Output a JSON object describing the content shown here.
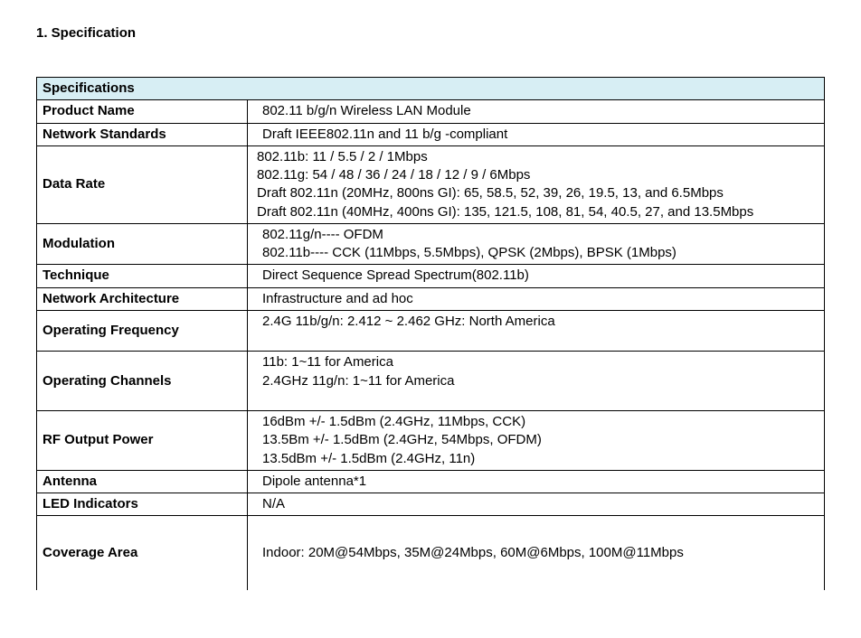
{
  "heading": "1.    Specification",
  "table": {
    "header": "Specifications",
    "labelColWidth": 220,
    "headerBg": "#d7eef4",
    "borderColor": "#000000",
    "rows": [
      {
        "label": "Product Name",
        "lines": [
          "802.11 b/g/n Wireless LAN Module"
        ],
        "indent": true
      },
      {
        "label": "Network Standards",
        "lines": [
          "Draft IEEE802.11n and 11 b/g -compliant"
        ],
        "indent": true
      },
      {
        "label": "Data Rate",
        "lines": [
          "802.11b: 11 / 5.5 / 2 / 1Mbps",
          "802.11g: 54 / 48 / 36 / 24 / 18 / 12 / 9 / 6Mbps",
          "Draft 802.11n (20MHz, 800ns GI): 65, 58.5, 52, 39, 26, 19.5, 13, and 6.5Mbps",
          "Draft 802.11n (40MHz, 400ns GI): 135, 121.5, 108, 81, 54, 40.5, 27, and 13.5Mbps"
        ],
        "indent": false
      },
      {
        "label": "Modulation",
        "lines": [
          "802.11g/n---- OFDM",
          "802.11b---- CCK (11Mbps, 5.5Mbps), QPSK (2Mbps), BPSK (1Mbps)"
        ],
        "indent": true
      },
      {
        "label": "Technique",
        "lines": [
          "Direct Sequence Spread Spectrum(802.11b)"
        ],
        "indent": true
      },
      {
        "label": "Network Architecture",
        "lines": [
          "Infrastructure and ad hoc"
        ],
        "indent": true
      },
      {
        "label": "Operating Frequency",
        "lines": [
          "2.4G 11b/g/n: 2.412 ~ 2.462 GHz: North America",
          ""
        ],
        "indent": true
      },
      {
        "label": "Operating Channels",
        "lines": [
          "11b: 1~11 for America",
          "2.4GHz 11g/n: 1~11 for America",
          ""
        ],
        "indent": true
      },
      {
        "label": "RF Output Power",
        "lines": [
          "16dBm +/- 1.5dBm (2.4GHz, 11Mbps, CCK)",
          "13.5Bm +/- 1.5dBm (2.4GHz, 54Mbps, OFDM)",
          "13.5dBm +/- 1.5dBm (2.4GHz, 11n)"
        ],
        "indent": true
      },
      {
        "label": "Antenna",
        "lines": [
          "Dipole antenna*1"
        ],
        "indent": true
      },
      {
        "label": "LED Indicators",
        "lines": [
          "N/A"
        ],
        "indent": true
      },
      {
        "label": "Coverage Area",
        "lines": [
          "Indoor: 20M@54Mbps, 35M@24Mbps, 60M@6Mbps, 100M@11Mbps"
        ],
        "indent": true,
        "coverage": true
      }
    ]
  }
}
